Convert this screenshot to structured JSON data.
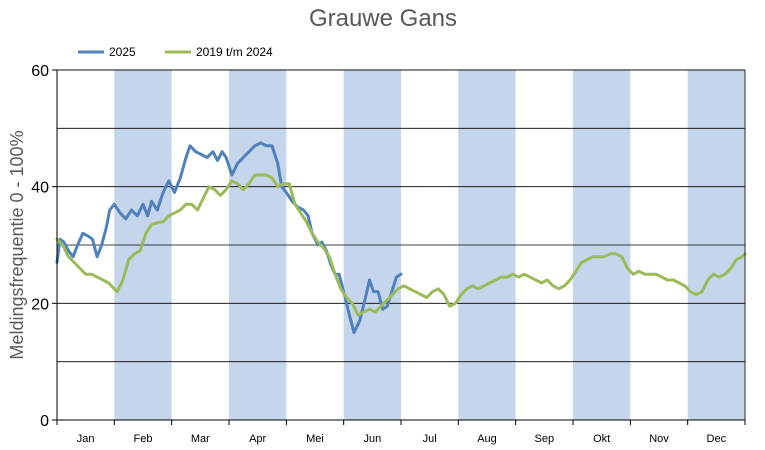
{
  "chart_data": {
    "type": "line",
    "title": "Grauwe Gans",
    "ylabel": "Meldingsfrequentie 0 - 100%",
    "xlabel": "",
    "ylim": [
      0,
      60
    ],
    "yticks": [
      0,
      20,
      40,
      60
    ],
    "grid": true,
    "legend_position": "top-left",
    "months": [
      "Jan",
      "Feb",
      "Mar",
      "Apr",
      "Mei",
      "Jun",
      "Jul",
      "Aug",
      "Sep",
      "Okt",
      "Nov",
      "Dec"
    ],
    "x_unit": "month",
    "xlim": [
      0,
      12
    ],
    "shaded_months": [
      1,
      3,
      5,
      7,
      9,
      11
    ],
    "series": [
      {
        "name": "2025",
        "color": "#4f81bd",
        "points": [
          [
            0.0,
            27.0
          ],
          [
            0.05,
            31.0
          ],
          [
            0.12,
            30.5
          ],
          [
            0.2,
            29.0
          ],
          [
            0.28,
            28.0
          ],
          [
            0.36,
            30.0
          ],
          [
            0.45,
            32.0
          ],
          [
            0.55,
            31.5
          ],
          [
            0.62,
            31.0
          ],
          [
            0.7,
            28.0
          ],
          [
            0.78,
            30.0
          ],
          [
            0.86,
            33.0
          ],
          [
            0.92,
            36.0
          ],
          [
            1.0,
            37.0
          ],
          [
            1.1,
            35.5
          ],
          [
            1.2,
            34.5
          ],
          [
            1.3,
            36.0
          ],
          [
            1.4,
            35.0
          ],
          [
            1.5,
            37.0
          ],
          [
            1.58,
            35.0
          ],
          [
            1.65,
            37.5
          ],
          [
            1.75,
            36.0
          ],
          [
            1.85,
            39.0
          ],
          [
            1.95,
            41.0
          ],
          [
            2.05,
            39.0
          ],
          [
            2.15,
            41.5
          ],
          [
            2.25,
            45.0
          ],
          [
            2.32,
            47.0
          ],
          [
            2.42,
            46.0
          ],
          [
            2.52,
            45.5
          ],
          [
            2.62,
            45.0
          ],
          [
            2.72,
            46.0
          ],
          [
            2.8,
            44.5
          ],
          [
            2.88,
            46.0
          ],
          [
            2.95,
            45.0
          ],
          [
            3.05,
            42.0
          ],
          [
            3.15,
            44.0
          ],
          [
            3.25,
            45.0
          ],
          [
            3.35,
            46.0
          ],
          [
            3.45,
            47.0
          ],
          [
            3.55,
            47.5
          ],
          [
            3.65,
            47.0
          ],
          [
            3.75,
            47.0
          ],
          [
            3.85,
            44.0
          ],
          [
            3.92,
            40.0
          ],
          [
            4.0,
            39.0
          ],
          [
            4.1,
            37.5
          ],
          [
            4.2,
            36.5
          ],
          [
            4.3,
            36.0
          ],
          [
            4.38,
            35.0
          ],
          [
            4.45,
            32.0
          ],
          [
            4.55,
            30.0
          ],
          [
            4.62,
            30.5
          ],
          [
            4.7,
            29.0
          ],
          [
            4.78,
            26.5
          ],
          [
            4.85,
            25.0
          ],
          [
            4.92,
            25.0
          ],
          [
            5.0,
            22.0
          ],
          [
            5.1,
            18.0
          ],
          [
            5.18,
            15.0
          ],
          [
            5.28,
            17.0
          ],
          [
            5.38,
            21.0
          ],
          [
            5.45,
            24.0
          ],
          [
            5.52,
            22.0
          ],
          [
            5.6,
            22.0
          ],
          [
            5.68,
            19.0
          ],
          [
            5.76,
            19.5
          ],
          [
            5.84,
            22.0
          ],
          [
            5.92,
            24.5
          ],
          [
            6.0,
            25.0
          ]
        ]
      },
      {
        "name": "2019 t/m 2024",
        "color": "#9bbb59",
        "points": [
          [
            0.0,
            31.0
          ],
          [
            0.1,
            30.0
          ],
          [
            0.2,
            28.0
          ],
          [
            0.3,
            27.0
          ],
          [
            0.4,
            26.0
          ],
          [
            0.5,
            25.0
          ],
          [
            0.6,
            25.0
          ],
          [
            0.7,
            24.5
          ],
          [
            0.8,
            24.0
          ],
          [
            0.9,
            23.5
          ],
          [
            1.0,
            22.5
          ],
          [
            1.05,
            22.0
          ],
          [
            1.15,
            24.0
          ],
          [
            1.25,
            27.5
          ],
          [
            1.35,
            28.5
          ],
          [
            1.45,
            29.0
          ],
          [
            1.55,
            32.0
          ],
          [
            1.65,
            33.5
          ],
          [
            1.75,
            33.8
          ],
          [
            1.85,
            34.0
          ],
          [
            1.95,
            35.0
          ],
          [
            2.05,
            35.5
          ],
          [
            2.15,
            36.0
          ],
          [
            2.25,
            37.0
          ],
          [
            2.35,
            37.0
          ],
          [
            2.45,
            36.0
          ],
          [
            2.55,
            38.0
          ],
          [
            2.65,
            40.0
          ],
          [
            2.75,
            39.5
          ],
          [
            2.85,
            38.5
          ],
          [
            2.95,
            39.5
          ],
          [
            3.05,
            41.0
          ],
          [
            3.15,
            40.5
          ],
          [
            3.25,
            39.5
          ],
          [
            3.35,
            40.5
          ],
          [
            3.45,
            42.0
          ],
          [
            3.55,
            42.0
          ],
          [
            3.65,
            42.0
          ],
          [
            3.75,
            41.5
          ],
          [
            3.85,
            40.0
          ],
          [
            3.95,
            40.5
          ],
          [
            4.05,
            40.5
          ],
          [
            4.15,
            37.0
          ],
          [
            4.25,
            35.5
          ],
          [
            4.35,
            34.0
          ],
          [
            4.45,
            32.0
          ],
          [
            4.55,
            30.5
          ],
          [
            4.65,
            29.5
          ],
          [
            4.75,
            28.0
          ],
          [
            4.85,
            25.0
          ],
          [
            4.95,
            22.5
          ],
          [
            5.05,
            21.0
          ],
          [
            5.15,
            20.0
          ],
          [
            5.25,
            18.0
          ],
          [
            5.35,
            18.5
          ],
          [
            5.45,
            19.0
          ],
          [
            5.55,
            18.5
          ],
          [
            5.65,
            19.5
          ],
          [
            5.75,
            20.5
          ],
          [
            5.85,
            21.5
          ],
          [
            5.95,
            22.5
          ],
          [
            6.05,
            23.0
          ],
          [
            6.15,
            22.5
          ],
          [
            6.25,
            22.0
          ],
          [
            6.35,
            21.5
          ],
          [
            6.45,
            21.0
          ],
          [
            6.55,
            22.0
          ],
          [
            6.65,
            22.5
          ],
          [
            6.75,
            21.5
          ],
          [
            6.85,
            19.5
          ],
          [
            6.95,
            20.0
          ],
          [
            7.05,
            21.5
          ],
          [
            7.15,
            22.5
          ],
          [
            7.25,
            23.0
          ],
          [
            7.35,
            22.5
          ],
          [
            7.45,
            23.0
          ],
          [
            7.55,
            23.5
          ],
          [
            7.65,
            24.0
          ],
          [
            7.75,
            24.5
          ],
          [
            7.85,
            24.5
          ],
          [
            7.95,
            25.0
          ],
          [
            8.05,
            24.5
          ],
          [
            8.15,
            25.0
          ],
          [
            8.25,
            24.5
          ],
          [
            8.35,
            24.0
          ],
          [
            8.45,
            23.5
          ],
          [
            8.55,
            24.0
          ],
          [
            8.65,
            23.0
          ],
          [
            8.75,
            22.5
          ],
          [
            8.85,
            23.0
          ],
          [
            8.95,
            24.0
          ],
          [
            9.05,
            25.5
          ],
          [
            9.15,
            27.0
          ],
          [
            9.25,
            27.5
          ],
          [
            9.35,
            28.0
          ],
          [
            9.45,
            28.0
          ],
          [
            9.55,
            28.0
          ],
          [
            9.65,
            28.5
          ],
          [
            9.75,
            28.5
          ],
          [
            9.85,
            28.0
          ],
          [
            9.95,
            26.0
          ],
          [
            10.05,
            25.0
          ],
          [
            10.15,
            25.5
          ],
          [
            10.25,
            25.0
          ],
          [
            10.35,
            25.0
          ],
          [
            10.45,
            25.0
          ],
          [
            10.55,
            24.5
          ],
          [
            10.65,
            24.0
          ],
          [
            10.75,
            24.0
          ],
          [
            10.85,
            23.5
          ],
          [
            10.95,
            23.0
          ],
          [
            11.05,
            22.0
          ],
          [
            11.15,
            21.5
          ],
          [
            11.25,
            22.0
          ],
          [
            11.35,
            24.0
          ],
          [
            11.45,
            25.0
          ],
          [
            11.55,
            24.5
          ],
          [
            11.65,
            25.0
          ],
          [
            11.75,
            26.0
          ],
          [
            11.85,
            27.5
          ],
          [
            11.95,
            28.0
          ],
          [
            12.0,
            28.5
          ]
        ]
      }
    ]
  }
}
